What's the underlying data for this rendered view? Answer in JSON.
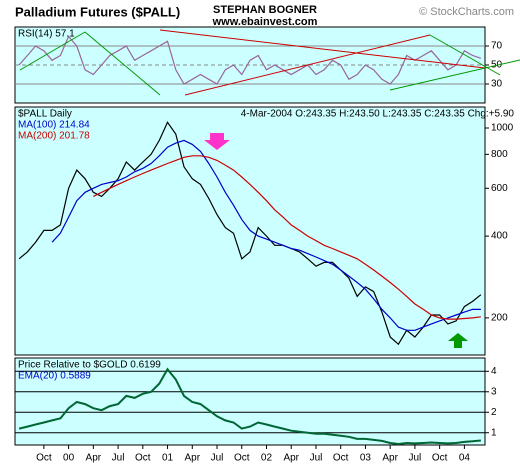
{
  "header": {
    "title": "Palladium Futures ($PALL)",
    "author": "STEPHAN BOGNER",
    "site": "www.ebainvest.com",
    "copyright": "© StockCharts.com"
  },
  "chart_data": [
    {
      "type": "line",
      "ylim": [
        10,
        90
      ],
      "yticks": [
        30,
        50,
        70
      ],
      "grid": true,
      "series": [
        {
          "name": "RSI(14) 57.1",
          "color": "#996699",
          "values": [
            50,
            60,
            70,
            65,
            55,
            60,
            80,
            70,
            45,
            40,
            50,
            60,
            65,
            70,
            55,
            60,
            65,
            70,
            75,
            45,
            30,
            35,
            40,
            35,
            30,
            45,
            50,
            40,
            55,
            60,
            45,
            50,
            45,
            40,
            45,
            50,
            40,
            45,
            55,
            50,
            35,
            40,
            50,
            45,
            35,
            30,
            40,
            60,
            55,
            60,
            65,
            55,
            45,
            50,
            65,
            60,
            57.1
          ]
        }
      ]
    },
    {
      "type": "line",
      "log": true,
      "ylim": [
        146,
        1195
      ],
      "yticks": [
        200,
        400,
        600,
        800,
        1000
      ],
      "grid": false,
      "quote": "4-Mar-2004 O:243.35 H:243.50 L:243.35 C:243.35 Chg:+5.90",
      "series": [
        {
          "name": "$PALL Daily",
          "color": "#000000",
          "values": [
            330,
            350,
            380,
            420,
            420,
            440,
            600,
            700,
            650,
            580,
            560,
            600,
            650,
            750,
            700,
            750,
            800,
            900,
            1050,
            950,
            720,
            650,
            620,
            550,
            480,
            430,
            410,
            330,
            350,
            430,
            400,
            370,
            370,
            360,
            350,
            330,
            310,
            320,
            320,
            300,
            280,
            240,
            260,
            250,
            210,
            170,
            160,
            180,
            170,
            185,
            205,
            205,
            190,
            195,
            220,
            230,
            243.35
          ]
        },
        {
          "name": "MA(100) 214.84",
          "color": "#0000cc",
          "values": [
            null,
            null,
            null,
            null,
            380,
            410,
            470,
            540,
            580,
            600,
            620,
            630,
            640,
            660,
            690,
            710,
            740,
            790,
            850,
            880,
            900,
            870,
            820,
            740,
            660,
            580,
            520,
            460,
            420,
            400,
            390,
            380,
            370,
            360,
            355,
            345,
            335,
            325,
            315,
            300,
            285,
            270,
            255,
            235,
            215,
            200,
            185,
            180,
            180,
            185,
            190,
            195,
            200,
            205,
            210,
            215,
            214.84
          ]
        },
        {
          "name": "MA(200) 201.78",
          "color": "#cc0000",
          "values": [
            null,
            null,
            null,
            null,
            null,
            null,
            null,
            null,
            null,
            560,
            580,
            600,
            620,
            640,
            660,
            680,
            700,
            720,
            740,
            760,
            780,
            790,
            790,
            780,
            760,
            730,
            700,
            660,
            620,
            580,
            540,
            500,
            470,
            440,
            420,
            400,
            385,
            370,
            360,
            350,
            340,
            330,
            315,
            300,
            285,
            270,
            255,
            240,
            225,
            215,
            205,
            200,
            198,
            198,
            199,
            200,
            201.78
          ]
        }
      ]
    },
    {
      "type": "line",
      "ylim": [
        0.4,
        4.65
      ],
      "yticks": [
        1,
        2,
        3,
        4
      ],
      "grid": true,
      "annotation": "EMA(20) 0.5889",
      "categories": [
        null,
        null,
        null,
        "Oct",
        null,
        null,
        "00",
        null,
        null,
        "Apr",
        null,
        null,
        "Jul",
        null,
        null,
        "Oct",
        null,
        null,
        "01",
        null,
        null,
        "Apr",
        null,
        null,
        "Jul",
        null,
        null,
        "Oct",
        null,
        null,
        "02",
        null,
        null,
        "Apr",
        null,
        null,
        "Jul",
        null,
        null,
        "Oct",
        null,
        null,
        "03",
        null,
        null,
        "Apr",
        null,
        null,
        "Jul",
        null,
        null,
        "Oct",
        null,
        null,
        "04",
        null,
        null
      ],
      "series": [
        {
          "name": "Price Relative to $GOLD 0.6199",
          "color": "#006633",
          "values": [
            1.2,
            1.3,
            1.4,
            1.5,
            1.6,
            1.7,
            2.2,
            2.5,
            2.4,
            2.2,
            2.1,
            2.3,
            2.4,
            2.8,
            2.7,
            2.9,
            3.0,
            3.4,
            4.1,
            3.6,
            2.8,
            2.5,
            2.4,
            2.1,
            1.8,
            1.6,
            1.5,
            1.2,
            1.3,
            1.5,
            1.4,
            1.3,
            1.2,
            1.1,
            1.05,
            1.0,
            0.95,
            0.95,
            0.9,
            0.85,
            0.8,
            0.7,
            0.7,
            0.65,
            0.6,
            0.5,
            0.45,
            0.5,
            0.48,
            0.5,
            0.52,
            0.5,
            0.48,
            0.5,
            0.55,
            0.58,
            0.6199
          ]
        }
      ]
    }
  ]
}
